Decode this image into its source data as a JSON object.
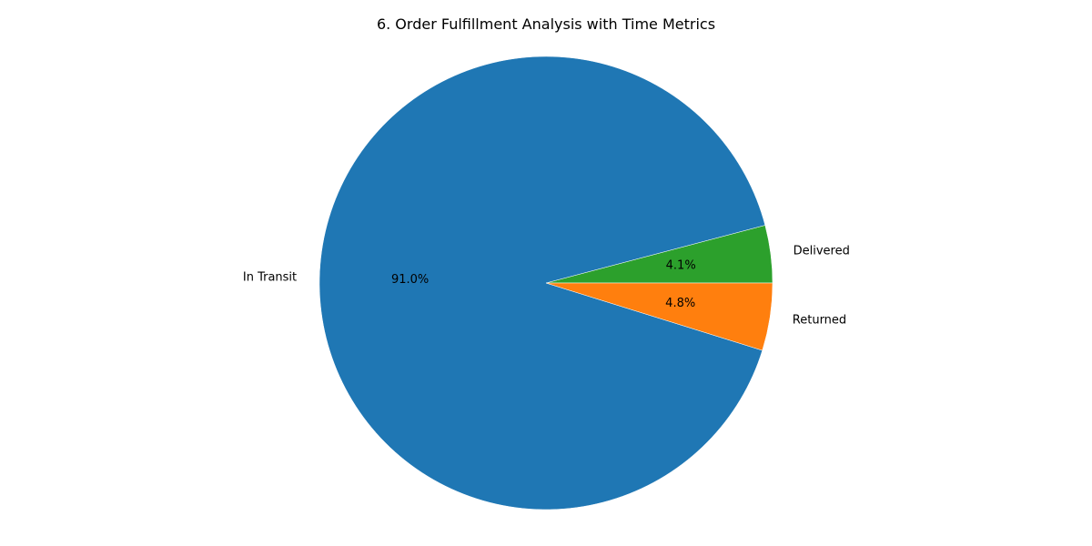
{
  "chart_data": {
    "type": "pie",
    "title": "6. Order Fulfillment Analysis with Time Metrics",
    "start_angle_deg": 0,
    "direction": "counterclockwise",
    "slices": [
      {
        "label": "Delivered",
        "value": 4.1,
        "pct_label": "4.1%",
        "color": "#2ca02c"
      },
      {
        "label": "In Transit",
        "value": 91.0,
        "pct_label": "91.0%",
        "color": "#1f77b4"
      },
      {
        "label": "Returned",
        "value": 4.8,
        "pct_label": "4.8%",
        "color": "#ff7f0e"
      }
    ]
  }
}
